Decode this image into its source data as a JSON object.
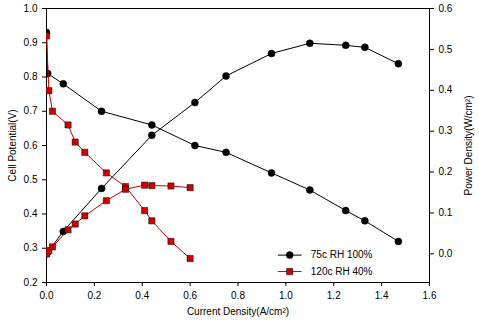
{
  "chart_data": {
    "type": "line",
    "x_label": "Current Density(A/cm²)",
    "y_label": "Cell Potential(V)",
    "y2_label": "Power Density(W/cm²)",
    "xlim": [
      0,
      1.6
    ],
    "xticks": [
      {
        "value": 0,
        "label": "0.0"
      },
      0.2,
      0.4,
      0.6,
      0.8,
      {
        "value": 1,
        "label": "1.0"
      },
      1.2,
      1.4,
      1.6
    ],
    "ylim": [
      0.2,
      1.0
    ],
    "yticks": [
      0.2,
      0.3,
      0.4,
      0.5,
      0.6,
      0.7,
      0.8,
      0.9,
      {
        "value": 1,
        "label": "1.0"
      }
    ],
    "y2lim": [
      -0.07,
      0.6
    ],
    "y2ticks": [
      {
        "value": 0,
        "label": "0.0"
      },
      0.1,
      0.2,
      0.3,
      0.4,
      0.5,
      0.6
    ],
    "grid": false,
    "legend": "lower right",
    "series": [
      {
        "name": "75c RH 100%",
        "color": "#000000",
        "marker": "circle",
        "line_style": "solid",
        "x": [
          0,
          0.005,
          0.07,
          0.23,
          0.44,
          0.62,
          0.75,
          0.94,
          1.1,
          1.25,
          1.33,
          1.47
        ],
        "values": [
          0.93,
          0.81,
          0.78,
          0.7,
          0.66,
          0.6,
          0.58,
          0.52,
          0.47,
          0.41,
          0.38,
          0.32
        ],
        "y2_values": [
          0,
          0.004,
          0.055,
          0.16,
          0.29,
          0.37,
          0.435,
          0.49,
          0.515,
          0.51,
          0.505,
          0.465
        ]
      },
      {
        "name": "120c RH 40%",
        "color": "#cc0000",
        "marker": "square",
        "line_style": "solid",
        "x": [
          0,
          0.01,
          0.025,
          0.09,
          0.12,
          0.16,
          0.25,
          0.33,
          0.41,
          0.44,
          0.52,
          0.6
        ],
        "values": [
          0.92,
          0.76,
          0.7,
          0.66,
          0.61,
          0.58,
          0.52,
          0.48,
          0.41,
          0.38,
          0.32,
          0.27
        ],
        "y2_values": [
          0,
          0.008,
          0.017,
          0.059,
          0.073,
          0.093,
          0.13,
          0.158,
          0.168,
          0.167,
          0.166,
          0.162
        ]
      }
    ]
  }
}
